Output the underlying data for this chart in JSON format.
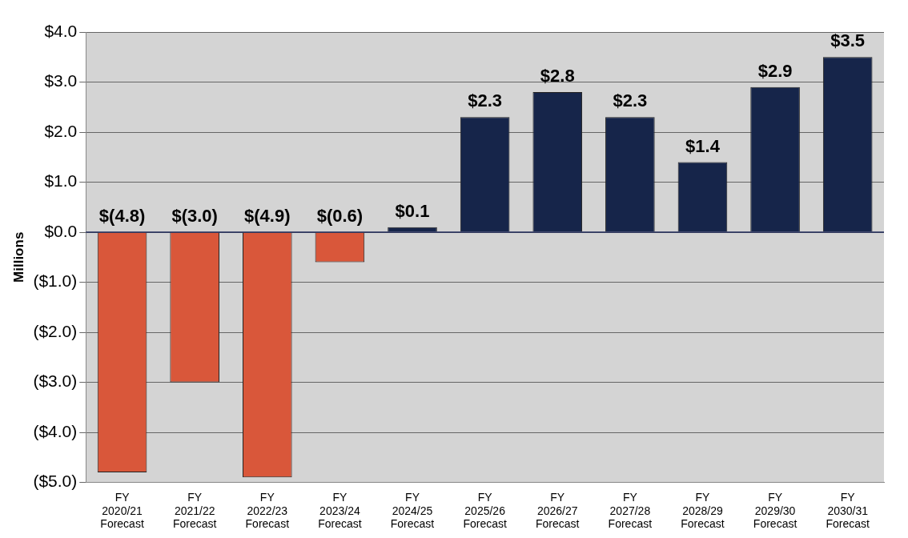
{
  "chart_data": {
    "type": "bar",
    "ylabel": "Millions",
    "categories": [
      "FY\n2020/21\nForecast",
      "FY\n2021/22\nForecast",
      "FY\n2022/23\nForecast",
      "FY\n2023/24\nForecast",
      "FY\n2024/25\nForecast",
      "FY\n2025/26\nForecast",
      "FY\n2026/27\nForecast",
      "FY\n2027/28\nForecast",
      "FY\n2028/29\nForecast",
      "FY\n2029/30\nForecast",
      "FY\n2030/31\nForecast"
    ],
    "values": [
      -4.8,
      -3.0,
      -4.9,
      -0.6,
      0.1,
      2.3,
      2.8,
      2.3,
      1.4,
      2.9,
      3.5
    ],
    "colors": [
      "#d9573a",
      "#d9573a",
      "#d9573a",
      "#d9573a",
      "#16254a",
      "#16254a",
      "#16254a",
      "#16254a",
      "#16254a",
      "#16254a",
      "#16254a"
    ],
    "value_labels": [
      "$(4.8)",
      "$(3.0)",
      "$(4.9)",
      "$(0.6)",
      "$0.1",
      "$2.3",
      "$2.8",
      "$2.3",
      "$1.4",
      "$2.9",
      "$3.5"
    ],
    "ylim": [
      -5,
      4
    ],
    "yticks": [
      {
        "value": -5,
        "label": "($5.0)"
      },
      {
        "value": -4,
        "label": "($4.0)"
      },
      {
        "value": -3,
        "label": "($3.0)"
      },
      {
        "value": -2,
        "label": "($2.0)"
      },
      {
        "value": -1,
        "label": "($1.0)"
      },
      {
        "value": 0,
        "label": "$0.0"
      },
      {
        "value": 1,
        "label": "$1.0"
      },
      {
        "value": 2,
        "label": "$2.0"
      },
      {
        "value": 3,
        "label": "$3.0"
      },
      {
        "value": 4,
        "label": "$4.0"
      }
    ],
    "grid": "y",
    "legend": false
  }
}
